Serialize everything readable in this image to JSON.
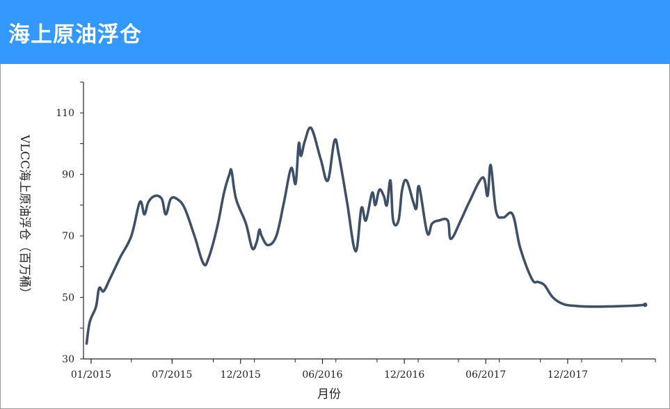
{
  "header": {
    "title": "海上原油浮仓",
    "background": "#3399ff"
  },
  "chart_data": {
    "type": "line",
    "title": "",
    "xlabel": "月份",
    "ylabel": "VLCC海上原油浮仓（百万桶）",
    "ylim": [
      30,
      120
    ],
    "xlim": [
      "2014-12-15",
      "2018-06-15"
    ],
    "x_ticks": [
      "01/2015",
      "07/2015",
      "12/2015",
      "06/2016",
      "12/2016",
      "06/2017",
      "12/2017"
    ],
    "y_ticks": [
      30,
      50,
      70,
      90,
      110
    ],
    "grid": false,
    "legend": "none",
    "series": [
      {
        "color": "#3e5068",
        "points": [
          [
            "2014-12-22",
            35
          ],
          [
            "2014-12-29",
            42
          ],
          [
            "2015-01-12",
            47
          ],
          [
            "2015-01-19",
            53
          ],
          [
            "2015-01-29",
            52
          ],
          [
            "2015-02-12",
            56
          ],
          [
            "2015-03-07",
            63
          ],
          [
            "2015-04-01",
            70
          ],
          [
            "2015-04-20",
            81
          ],
          [
            "2015-04-30",
            77
          ],
          [
            "2015-05-09",
            81
          ],
          [
            "2015-05-24",
            83
          ],
          [
            "2015-06-08",
            82
          ],
          [
            "2015-06-17",
            77
          ],
          [
            "2015-06-28",
            82
          ],
          [
            "2015-07-12",
            82
          ],
          [
            "2015-07-29",
            79
          ],
          [
            "2015-08-20",
            70
          ],
          [
            "2015-09-09",
            61
          ],
          [
            "2015-09-21",
            63
          ],
          [
            "2015-10-10",
            73
          ],
          [
            "2015-10-25",
            84
          ],
          [
            "2015-11-06",
            90
          ],
          [
            "2015-11-11",
            91
          ],
          [
            "2015-11-21",
            82
          ],
          [
            "2015-12-13",
            74
          ],
          [
            "2015-12-27",
            66
          ],
          [
            "2016-01-06",
            68
          ],
          [
            "2016-01-12",
            72
          ],
          [
            "2016-01-17",
            70
          ],
          [
            "2016-01-31",
            67
          ],
          [
            "2016-02-19",
            70
          ],
          [
            "2016-03-07",
            81
          ],
          [
            "2016-03-23",
            92
          ],
          [
            "2016-04-02",
            87
          ],
          [
            "2016-04-09",
            100
          ],
          [
            "2016-04-14",
            96
          ],
          [
            "2016-04-23",
            101
          ],
          [
            "2016-05-07",
            105
          ],
          [
            "2016-05-28",
            95
          ],
          [
            "2016-06-13",
            88
          ],
          [
            "2016-06-28",
            101
          ],
          [
            "2016-07-08",
            96
          ],
          [
            "2016-07-26",
            81
          ],
          [
            "2016-08-14",
            65
          ],
          [
            "2016-08-27",
            79
          ],
          [
            "2016-09-06",
            75
          ],
          [
            "2016-09-20",
            84
          ],
          [
            "2016-09-27",
            80
          ],
          [
            "2016-10-06",
            85
          ],
          [
            "2016-10-16",
            83
          ],
          [
            "2016-10-23",
            80
          ],
          [
            "2016-10-31",
            88
          ],
          [
            "2016-11-06",
            75
          ],
          [
            "2016-11-18",
            75
          ],
          [
            "2016-11-26",
            85
          ],
          [
            "2016-12-06",
            88
          ],
          [
            "2016-12-21",
            81
          ],
          [
            "2016-12-28",
            79
          ],
          [
            "2017-01-03",
            86
          ],
          [
            "2017-01-21",
            71
          ],
          [
            "2017-02-01",
            74
          ],
          [
            "2017-02-16",
            75
          ],
          [
            "2017-03-08",
            75
          ],
          [
            "2017-03-15",
            69
          ],
          [
            "2017-04-06",
            75
          ],
          [
            "2017-04-25",
            81
          ],
          [
            "2017-05-25",
            89
          ],
          [
            "2017-06-05",
            83
          ],
          [
            "2017-06-12",
            93
          ],
          [
            "2017-06-24",
            78
          ],
          [
            "2017-07-10",
            76
          ],
          [
            "2017-07-31",
            77
          ],
          [
            "2017-08-17",
            66
          ],
          [
            "2017-09-12",
            56
          ],
          [
            "2017-09-26",
            55
          ],
          [
            "2017-10-10",
            54
          ],
          [
            "2017-10-29",
            50
          ],
          [
            "2017-11-22",
            47.8
          ],
          [
            "2017-12-21",
            47.2
          ],
          [
            "2018-01-28",
            47
          ],
          [
            "2018-03-12",
            47.1
          ],
          [
            "2018-04-25",
            47.3
          ],
          [
            "2018-05-23",
            47.6
          ]
        ]
      }
    ]
  }
}
